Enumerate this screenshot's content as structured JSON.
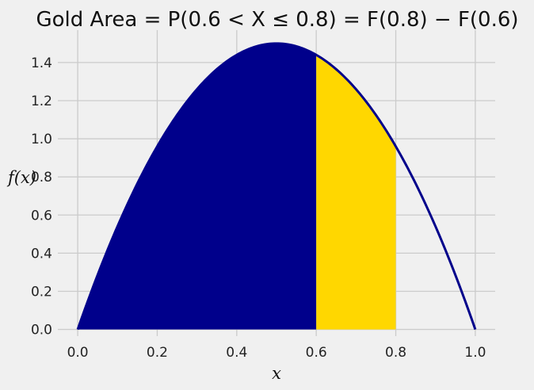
{
  "chart_data": {
    "type": "area",
    "title": "Gold Area $=P(0.6 < X \\leq 0.8) = F(0.8) - F(0.6)$",
    "title_display": "Gold Area  = P(0.6 < X ≤ 0.8) = F(0.8) − F(0.6)",
    "xlabel": "x",
    "ylabel": "f(x)",
    "xlim": [
      -0.05,
      1.05
    ],
    "ylim": [
      -0.035,
      1.57
    ],
    "x_ticks": [
      0.0,
      0.2,
      0.4,
      0.6,
      0.8,
      1.0
    ],
    "x_tick_labels": [
      "0.0",
      "0.2",
      "0.4",
      "0.6",
      "0.8",
      "1.0"
    ],
    "y_ticks": [
      0.0,
      0.2,
      0.4,
      0.6,
      0.8,
      1.0,
      1.2,
      1.4
    ],
    "y_tick_labels": [
      "0.0",
      "0.2",
      "0.4",
      "0.6",
      "0.8",
      "1.0",
      "1.2",
      "1.4"
    ],
    "grid": true,
    "density": {
      "formula": "f(x) = 6x(1-x)",
      "domain": [
        0,
        1
      ],
      "peak": {
        "x": 0.5,
        "y": 1.5
      },
      "x": [
        0.0,
        0.1,
        0.2,
        0.3,
        0.4,
        0.5,
        0.6,
        0.7,
        0.8,
        0.9,
        1.0
      ],
      "y": [
        0.0,
        0.54,
        0.96,
        1.26,
        1.44,
        1.5,
        1.44,
        1.26,
        0.96,
        0.54,
        0.0
      ]
    },
    "regions": [
      {
        "range": [
          0.0,
          0.6
        ],
        "color": "#00008b"
      },
      {
        "range": [
          0.6,
          0.8
        ],
        "color": "#ffd700"
      }
    ],
    "curve_color": "#00008b"
  }
}
